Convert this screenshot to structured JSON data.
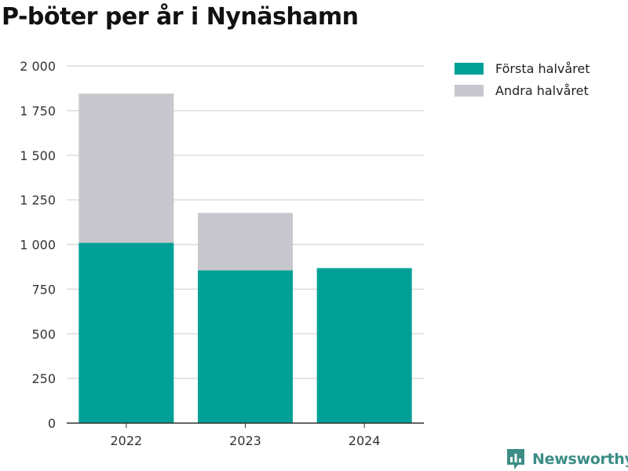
{
  "title": "P-böter per år i Nynäshamn",
  "brand": {
    "name": "Newsworthy",
    "icon": "newsworthy-logo-icon"
  },
  "colors": {
    "first_half": "#00a096",
    "second_half": "#c8c7cd",
    "grid": "#dcdcdc",
    "axis": "#333333"
  },
  "legend": [
    "Första halvåret",
    "Andra halvåret"
  ],
  "chart_data": {
    "type": "bar",
    "stacked": true,
    "categories": [
      "2022",
      "2023",
      "2024"
    ],
    "series": [
      {
        "name": "Första halvåret",
        "values": [
          1010,
          855,
          868
        ]
      },
      {
        "name": "Andra halvåret",
        "values": [
          835,
          322,
          0
        ]
      }
    ],
    "yticks": [
      0,
      250,
      500,
      750,
      1000,
      1250,
      1500,
      1750,
      2000
    ],
    "ytick_labels": [
      "0",
      "250",
      "500",
      "750",
      "1 000",
      "1 250",
      "1 500",
      "1 750",
      "2 000"
    ],
    "ylim": [
      0,
      2000
    ],
    "grid": true,
    "legend_position": "top-right"
  }
}
